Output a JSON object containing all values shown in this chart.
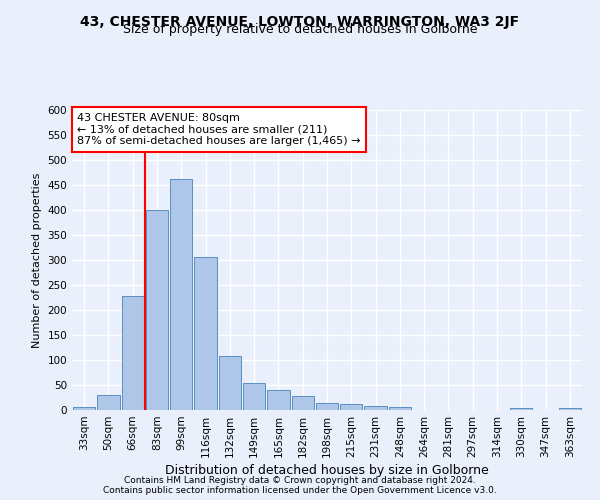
{
  "title1": "43, CHESTER AVENUE, LOWTON, WARRINGTON, WA3 2JF",
  "title2": "Size of property relative to detached houses in Golborne",
  "xlabel": "Distribution of detached houses by size in Golborne",
  "ylabel": "Number of detached properties",
  "bar_labels": [
    "33sqm",
    "50sqm",
    "66sqm",
    "83sqm",
    "99sqm",
    "116sqm",
    "132sqm",
    "149sqm",
    "165sqm",
    "182sqm",
    "198sqm",
    "215sqm",
    "231sqm",
    "248sqm",
    "264sqm",
    "281sqm",
    "297sqm",
    "314sqm",
    "330sqm",
    "347sqm",
    "363sqm"
  ],
  "bar_values": [
    7,
    31,
    228,
    401,
    463,
    307,
    108,
    55,
    41,
    28,
    14,
    13,
    9,
    7,
    0,
    0,
    0,
    0,
    5,
    0,
    5
  ],
  "bar_color": "#aec6e8",
  "bar_edge_color": "#5a8fc2",
  "vline_color": "red",
  "vline_x_index": 3,
  "annotation_text": "43 CHESTER AVENUE: 80sqm\n← 13% of detached houses are smaller (211)\n87% of semi-detached houses are larger (1,465) →",
  "annotation_box_color": "white",
  "annotation_box_edge": "red",
  "ylim": [
    0,
    600
  ],
  "yticks": [
    0,
    50,
    100,
    150,
    200,
    250,
    300,
    350,
    400,
    450,
    500,
    550,
    600
  ],
  "footer1": "Contains HM Land Registry data © Crown copyright and database right 2024.",
  "footer2": "Contains public sector information licensed under the Open Government Licence v3.0.",
  "bg_color": "#eaf0fb",
  "grid_color": "#ffffff",
  "title1_fontsize": 10,
  "title2_fontsize": 9,
  "ylabel_fontsize": 8,
  "xlabel_fontsize": 9,
  "tick_fontsize": 7.5,
  "footer_fontsize": 6.5,
  "annotation_fontsize": 8
}
